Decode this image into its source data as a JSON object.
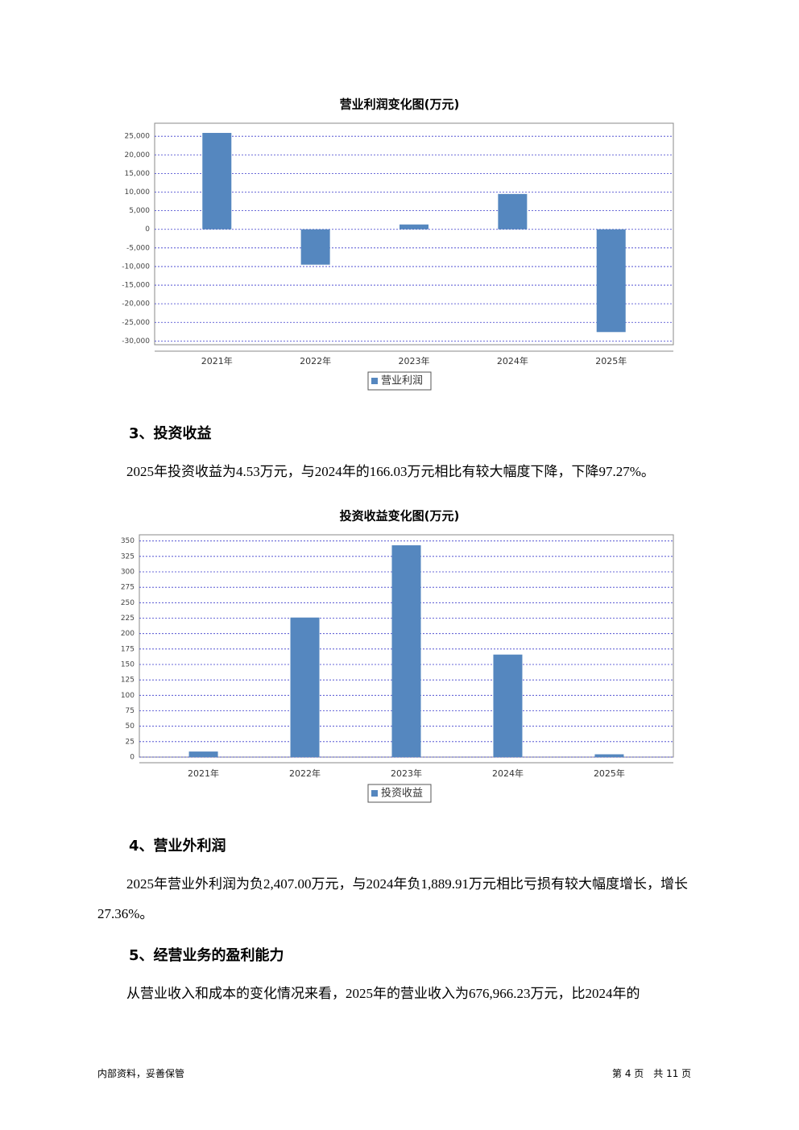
{
  "chart_data": [
    {
      "type": "bar",
      "title": "营业利润变化图(万元)",
      "categories": [
        "2021年",
        "2022年",
        "2023年",
        "2024年",
        "2025年"
      ],
      "series": [
        {
          "name": "营业利润",
          "color": "#5587bf",
          "values": [
            25900,
            -9500,
            1300,
            9500,
            -27600
          ]
        }
      ],
      "ylim": [
        -31000,
        28500
      ],
      "yticks": [
        {
          "value": 25000,
          "label": "25,000"
        },
        {
          "value": 20000,
          "label": "20,000"
        },
        {
          "value": 15000,
          "label": "15,000"
        },
        {
          "value": 10000,
          "label": "10,000"
        },
        {
          "value": 5000,
          "label": "5,000"
        },
        0,
        {
          "value": -5000,
          "label": "-5,000"
        },
        {
          "value": -10000,
          "label": "-10,000"
        },
        {
          "value": -15000,
          "label": "-15,000"
        },
        {
          "value": -20000,
          "label": "-20,000"
        },
        {
          "value": -25000,
          "label": "-25,000"
        },
        {
          "value": -30000,
          "label": "-30,000"
        }
      ],
      "grid": true,
      "legend": "bottom"
    },
    {
      "type": "bar",
      "title": "投资收益变化图(万元)",
      "categories": [
        "2021年",
        "2022年",
        "2023年",
        "2024年",
        "2025年"
      ],
      "series": [
        {
          "name": "投资收益",
          "color": "#5587bf",
          "values": [
            9,
            226,
            343,
            166.03,
            4.53
          ]
        }
      ],
      "ylim": [
        0,
        360
      ],
      "yticks": [
        0,
        25,
        50,
        75,
        100,
        125,
        150,
        175,
        200,
        225,
        250,
        275,
        300,
        325,
        350
      ],
      "grid": true,
      "legend": "bottom"
    }
  ],
  "sections": [
    {
      "heading": "3、投资收益",
      "paragraphs": [
        "2025年投资收益为4.53万元，与2024年的166.03万元相比有较大幅度下降，下降97.27%。"
      ]
    },
    {
      "heading": "4、营业外利润",
      "paragraphs": [
        "2025年营业外利润为负2,407.00万元，与2024年负1,889.91万元相比亏损有较大幅度增长，增长27.36%。"
      ]
    },
    {
      "heading": "5、经营业务的盈利能力",
      "paragraphs": [
        "从营业收入和成本的变化情况来看，2025年的营业收入为676,966.23万元，比2024年的"
      ]
    }
  ],
  "footer": {
    "left": "内部资料，妥善保管",
    "right": "第 4 页　共 11 页"
  }
}
